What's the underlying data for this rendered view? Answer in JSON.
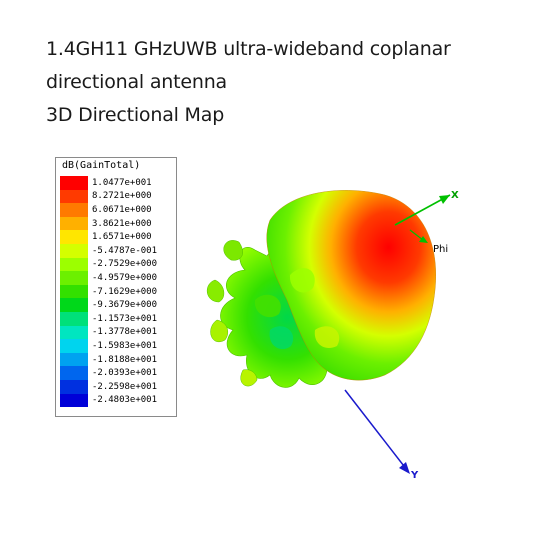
{
  "title": {
    "line1": "1.4GH11 GHzUWB ultra-wideband coplanar",
    "line2": "directional antenna",
    "line3": "3D Directional Map"
  },
  "legend": {
    "header": "dB(GainTotal)",
    "entries": [
      {
        "value": "1.0477e+001",
        "color": "#ff0000"
      },
      {
        "value": "8.2721e+000",
        "color": "#ff3a00"
      },
      {
        "value": "6.0671e+000",
        "color": "#ff7a00"
      },
      {
        "value": "3.8621e+000",
        "color": "#ffb000"
      },
      {
        "value": "1.6571e+000",
        "color": "#ffe600"
      },
      {
        "value": "-5.4787e-001",
        "color": "#d4ff00"
      },
      {
        "value": "-2.7529e+000",
        "color": "#9cff00"
      },
      {
        "value": "-4.9579e+000",
        "color": "#6cf000"
      },
      {
        "value": "-7.1629e+000",
        "color": "#33e000"
      },
      {
        "value": "-9.3679e+000",
        "color": "#00d81a"
      },
      {
        "value": "-1.1573e+001",
        "color": "#00e07a"
      },
      {
        "value": "-1.3778e+001",
        "color": "#00e6c0"
      },
      {
        "value": "-1.5983e+001",
        "color": "#00d4ee"
      },
      {
        "value": "-1.8188e+001",
        "color": "#00a2f0"
      },
      {
        "value": "-2.0393e+001",
        "color": "#0066ee"
      },
      {
        "value": "-2.2598e+001",
        "color": "#0030e0"
      },
      {
        "value": "-2.4803e+001",
        "color": "#0000d8"
      }
    ]
  },
  "axes": {
    "x_label": "X",
    "phi_label": "Phi",
    "y_label": "Y",
    "x_color": "#00c000",
    "y_color": "#1a1acc"
  }
}
